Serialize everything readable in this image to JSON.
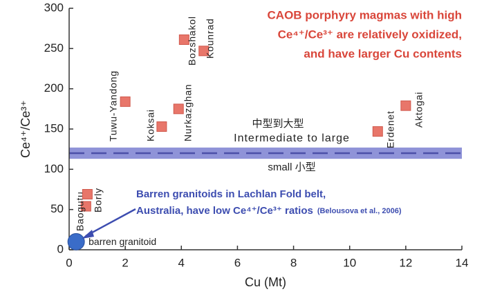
{
  "chart_data": {
    "type": "scatter",
    "x_label": "Cu (Mt)",
    "y_label": "Ce⁴⁺/Ce³⁺",
    "xlim": [
      0,
      14
    ],
    "xticks": [
      0,
      2,
      4,
      6,
      8,
      10,
      12,
      14
    ],
    "ylim": [
      0,
      300
    ],
    "yticks": [
      0,
      50,
      100,
      150,
      200,
      250,
      300
    ],
    "series": [
      {
        "color": "#e8766a",
        "marker": "square",
        "labels": [
          "Baogutu",
          "Borly",
          "Tuwu-Yandong",
          "Koksai",
          "Nurkazghan",
          "Bozshakol",
          "Kounrad",
          "Erdenet",
          "Aktogai"
        ],
        "x": [
          0.6,
          0.65,
          2.0,
          3.3,
          3.9,
          4.1,
          4.8,
          11.0,
          12.0
        ],
        "values": [
          54,
          69,
          184,
          153,
          175,
          261,
          247,
          147,
          179
        ]
      },
      {
        "color": "#3a6cc8",
        "marker": "circle",
        "labels": [
          "barren granitoid"
        ],
        "x": [
          0.25
        ],
        "values": [
          10
        ]
      }
    ],
    "reference_band": {
      "range": [
        113,
        127
      ],
      "line": 120,
      "color": "#8f93d8",
      "upper_labels": [
        "中型到大型",
        "Intermediate to large"
      ],
      "lower_label": "small 小型"
    },
    "annotations": {
      "oxidized": [
        "CAOB porphyry magmas with high",
        "Ce⁴⁺/Ce³⁺ are relatively oxidized,",
        "and have larger Cu contents"
      ],
      "barren": [
        "Barren granitoids in Lachlan Fold belt,",
        "Australia, have low Ce⁴⁺/Ce³⁺ ratios"
      ],
      "barren_source": "(Belousova et al., 2006)"
    }
  }
}
